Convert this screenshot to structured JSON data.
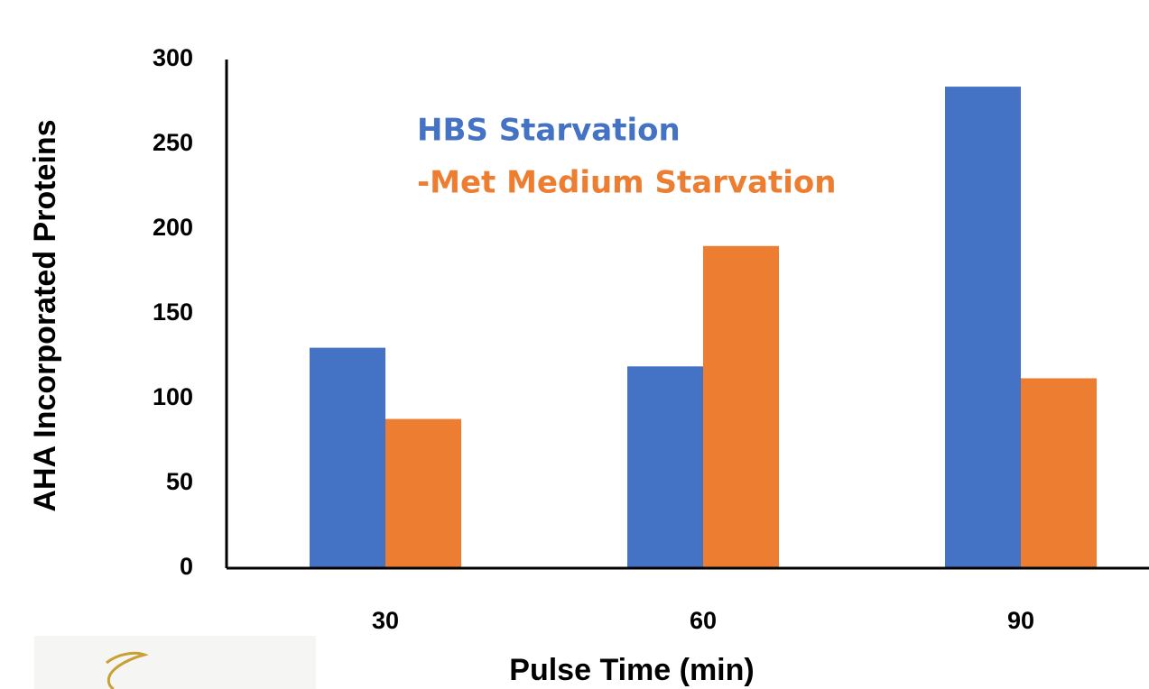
{
  "chart_data": {
    "type": "bar",
    "x_label": "Pulse Time (min)",
    "y_label": "AHA Incorporated Proteins",
    "categories": [
      "30",
      "60",
      "90"
    ],
    "series": [
      {
        "name": "HBS Starvation",
        "color": "#4472c4",
        "values": [
          130,
          119,
          284
        ]
      },
      {
        "name": "-Met Medium Starvation",
        "color": "#ed7d31",
        "values": [
          88,
          190,
          112
        ]
      }
    ],
    "ylim": [
      0,
      300
    ],
    "yticks": [
      0,
      50,
      100,
      150,
      200,
      250,
      300
    ],
    "grid": false
  }
}
